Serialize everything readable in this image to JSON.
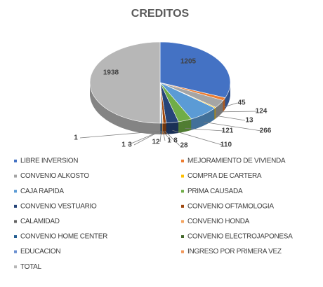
{
  "chart_data": {
    "type": "pie",
    "title": "CREDITOS",
    "categories": [
      "LIBRE INVERSION",
      "MEJORAMIENTO DE VIVIENDA",
      "CONVENIO ALKOSTO",
      "COMPRA DE CARTERA",
      "CAJA RAPIDA",
      "PRIMA CAUSADA",
      "CONVENIO VESTUARIO",
      "CONVENIO OFTAMOLOGIA",
      "CALAMIDAD",
      "CONVENIO HONDA",
      "CONVENIO HOME CENTER",
      "CONVENIO ELECTROJAPONESA",
      "EDUCACION",
      "INGRESO POR PRIMERA VEZ",
      "TOTAL"
    ],
    "values": [
      1205,
      45,
      124,
      13,
      266,
      121,
      110,
      28,
      1,
      8,
      12,
      1,
      3,
      1,
      1938
    ],
    "colors": [
      "#4472c4",
      "#ed7d31",
      "#a5a5a5",
      "#ffc000",
      "#5b9bd5",
      "#70ad47",
      "#264478",
      "#9e480e",
      "#636363",
      "#f4a460",
      "#255e91",
      "#43682b",
      "#698ed0",
      "#f1975a",
      "#b7b7b7"
    ],
    "legend": "bottom"
  }
}
